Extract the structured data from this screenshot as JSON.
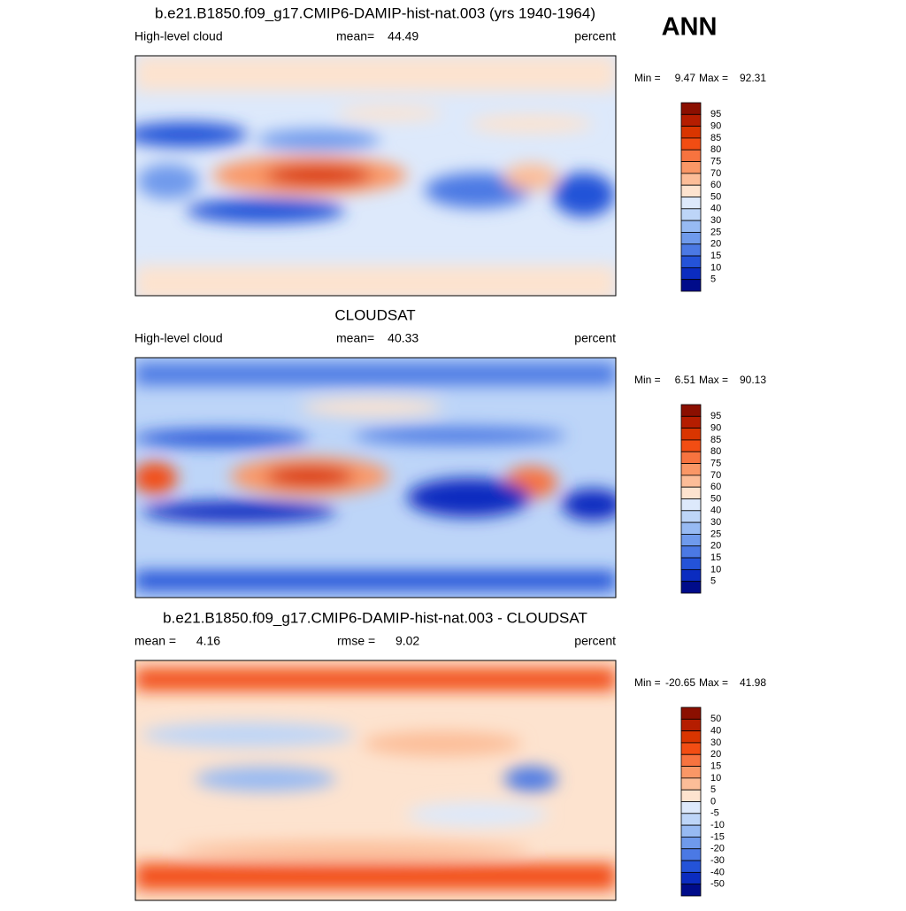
{
  "header": {
    "season": "ANN"
  },
  "panels": [
    {
      "title": "b.e21.B1850.f09_g17.CMIP6-DAMIP-hist-nat.003 (yrs 1940-1964)",
      "subtitle_left": "High-level cloud",
      "stats": [
        {
          "label": "mean=",
          "value": 44.49
        }
      ],
      "units": "percent",
      "min_label": "Min =",
      "min": 9.47,
      "max_label": "Max =",
      "max": 92.31,
      "levels": [
        95,
        90,
        85,
        80,
        75,
        70,
        60,
        50,
        40,
        30,
        25,
        20,
        15,
        10,
        5
      ]
    },
    {
      "title": "CLOUDSAT",
      "subtitle_left": "High-level cloud",
      "stats": [
        {
          "label": "mean=",
          "value": 40.33
        }
      ],
      "units": "percent",
      "min_label": "Min =",
      "min": 6.51,
      "max_label": "Max =",
      "max": 90.13,
      "levels": [
        95,
        90,
        85,
        80,
        75,
        70,
        60,
        50,
        40,
        30,
        25,
        20,
        15,
        10,
        5
      ]
    },
    {
      "title": "b.e21.B1850.f09_g17.CMIP6-DAMIP-hist-nat.003 - CLOUDSAT",
      "stats": [
        {
          "label": "mean =",
          "value": 4.16
        },
        {
          "label": "rmse =",
          "value": 9.02
        }
      ],
      "units": "percent",
      "min_label": "Min =",
      "min": -20.65,
      "max_label": "Max =",
      "max": 41.98,
      "levels": [
        50,
        40,
        30,
        20,
        15,
        10,
        5,
        0,
        -5,
        -10,
        -15,
        -20,
        -30,
        -40,
        -50
      ]
    }
  ],
  "colors": [
    "#8b0f00",
    "#b51d00",
    "#d93500",
    "#f24d13",
    "#f7733f",
    "#fa9766",
    "#fcbd98",
    "#fde3cf",
    "#dde9fb",
    "#bdd5f8",
    "#97baf3",
    "#6f9aec",
    "#4b79e4",
    "#2453d8",
    "#0b2cc0",
    "#000c8a"
  ]
}
